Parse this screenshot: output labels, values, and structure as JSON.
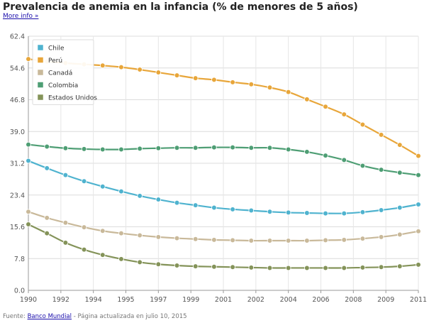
{
  "header": {
    "title": "Prevalencia de anemia en la infancia (% de menores de 5 años)",
    "more_info": "More info »"
  },
  "footer": {
    "source_prefix": "Fuente: ",
    "source_link": "Banco Mundial",
    "suffix": " - Página actualizada en julio 10, 2015"
  },
  "chart_data": {
    "type": "line",
    "title": "Prevalencia de anemia en la infancia (% de menores de 5 años)",
    "xlabel": "",
    "ylabel": "",
    "ylim": [
      0,
      62.4
    ],
    "yticks": [
      "0.0",
      "7.8",
      "15.6",
      "23.4",
      "31.2",
      "39.0",
      "46.8",
      "54.6",
      "62.4"
    ],
    "xlim": [
      1990,
      2011
    ],
    "xticks": [
      "1990",
      "1992",
      "1994",
      "1995",
      "1997",
      "1999",
      "2001",
      "2002",
      "2004",
      "2006",
      "2008",
      "2009",
      "2011"
    ],
    "grid": true,
    "legend_position": "top-left",
    "series": [
      {
        "name": "Chile",
        "color": "#4fb3cf",
        "x": [
          1990,
          1991,
          1992,
          1993,
          1994,
          1995,
          1996,
          1997,
          1998,
          1999,
          2000,
          2001,
          2002,
          2003,
          2004,
          2005,
          2006,
          2007,
          2008,
          2009,
          2010,
          2011
        ],
        "values": [
          31.8,
          30.0,
          28.3,
          26.8,
          25.5,
          24.3,
          23.2,
          22.3,
          21.5,
          20.9,
          20.3,
          19.9,
          19.6,
          19.3,
          19.1,
          19.0,
          18.9,
          18.9,
          19.2,
          19.7,
          20.3,
          21.1
        ]
      },
      {
        "name": "Perú",
        "color": "#e8a63a",
        "x": [
          1990,
          1991,
          1992,
          1993,
          1994,
          1995,
          1996,
          1997,
          1998,
          1999,
          2000,
          2001,
          2002,
          2003,
          2004,
          2005,
          2006,
          2007,
          2008,
          2009,
          2010,
          2011
        ],
        "values": [
          56.8,
          56.2,
          55.8,
          55.5,
          55.2,
          54.8,
          54.2,
          53.5,
          52.8,
          52.1,
          51.7,
          51.1,
          50.6,
          49.8,
          48.7,
          46.9,
          45.1,
          43.2,
          40.7,
          38.2,
          35.7,
          33.0
        ]
      },
      {
        "name": "Canadá",
        "color": "#c9b99a",
        "x": [
          1990,
          1991,
          1992,
          1993,
          1994,
          1995,
          1996,
          1997,
          1998,
          1999,
          2000,
          2001,
          2002,
          2003,
          2004,
          2005,
          2006,
          2007,
          2008,
          2009,
          2010,
          2011
        ],
        "values": [
          19.3,
          17.8,
          16.6,
          15.5,
          14.6,
          14.0,
          13.5,
          13.1,
          12.8,
          12.6,
          12.4,
          12.3,
          12.2,
          12.2,
          12.2,
          12.2,
          12.3,
          12.4,
          12.7,
          13.1,
          13.7,
          14.5
        ]
      },
      {
        "name": "Colombia",
        "color": "#4e9e74",
        "x": [
          1990,
          1991,
          1992,
          1993,
          1994,
          1995,
          1996,
          1997,
          1998,
          1999,
          2000,
          2001,
          2002,
          2003,
          2004,
          2005,
          2006,
          2007,
          2008,
          2009,
          2010,
          2011
        ],
        "values": [
          35.8,
          35.3,
          34.9,
          34.7,
          34.6,
          34.6,
          34.8,
          34.9,
          35.0,
          35.0,
          35.1,
          35.1,
          35.0,
          35.0,
          34.6,
          34.0,
          33.1,
          32.0,
          30.6,
          29.6,
          28.9,
          28.3
        ]
      },
      {
        "name": "Estados Unidos",
        "color": "#849359",
        "x": [
          1990,
          1991,
          1992,
          1993,
          1994,
          1995,
          1996,
          1997,
          1998,
          1999,
          2000,
          2001,
          2002,
          2003,
          2004,
          2005,
          2006,
          2007,
          2008,
          2009,
          2010,
          2011
        ],
        "values": [
          16.2,
          14.0,
          11.7,
          10.0,
          8.7,
          7.7,
          6.9,
          6.4,
          6.1,
          5.9,
          5.8,
          5.7,
          5.6,
          5.5,
          5.5,
          5.5,
          5.5,
          5.5,
          5.6,
          5.7,
          5.9,
          6.3
        ]
      }
    ]
  }
}
